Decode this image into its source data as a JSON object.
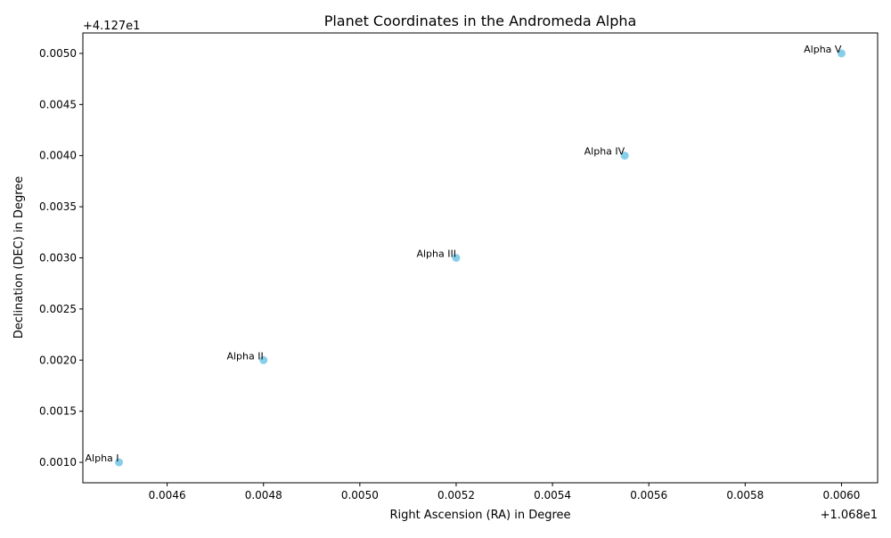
{
  "chart_data": {
    "type": "scatter",
    "title": "Planet Coordinates in the Andromeda Alpha",
    "xlabel": "Right Ascension (RA) in Degree",
    "ylabel": "Declination (DEC) in Degree",
    "x_offset_label": "+1.068e1",
    "y_offset_label": "+4.127e1",
    "xlim": [
      0.004425,
      0.006075
    ],
    "ylim": [
      0.0008,
      0.0052
    ],
    "x_ticks": [
      0.0046,
      0.0048,
      0.005,
      0.0052,
      0.0054,
      0.0056,
      0.0058,
      0.006
    ],
    "x_tick_labels": [
      "0.0046",
      "0.0048",
      "0.0050",
      "0.0052",
      "0.0054",
      "0.0056",
      "0.0058",
      "0.0060"
    ],
    "y_ticks": [
      0.001,
      0.0015,
      0.002,
      0.0025,
      0.003,
      0.0035,
      0.004,
      0.0045,
      0.005
    ],
    "y_tick_labels": [
      "0.0010",
      "0.0015",
      "0.0020",
      "0.0025",
      "0.0030",
      "0.0035",
      "0.0040",
      "0.0045",
      "0.0050"
    ],
    "grid": false,
    "marker_color": "#87ceeb",
    "points": [
      {
        "label": "Alpha I",
        "x": 0.0045,
        "y": 0.001
      },
      {
        "label": "Alpha II",
        "x": 0.0048,
        "y": 0.002
      },
      {
        "label": "Alpha III",
        "x": 0.0052,
        "y": 0.003
      },
      {
        "label": "Alpha IV",
        "x": 0.00555,
        "y": 0.004
      },
      {
        "label": "Alpha V",
        "x": 0.006,
        "y": 0.005
      }
    ]
  }
}
